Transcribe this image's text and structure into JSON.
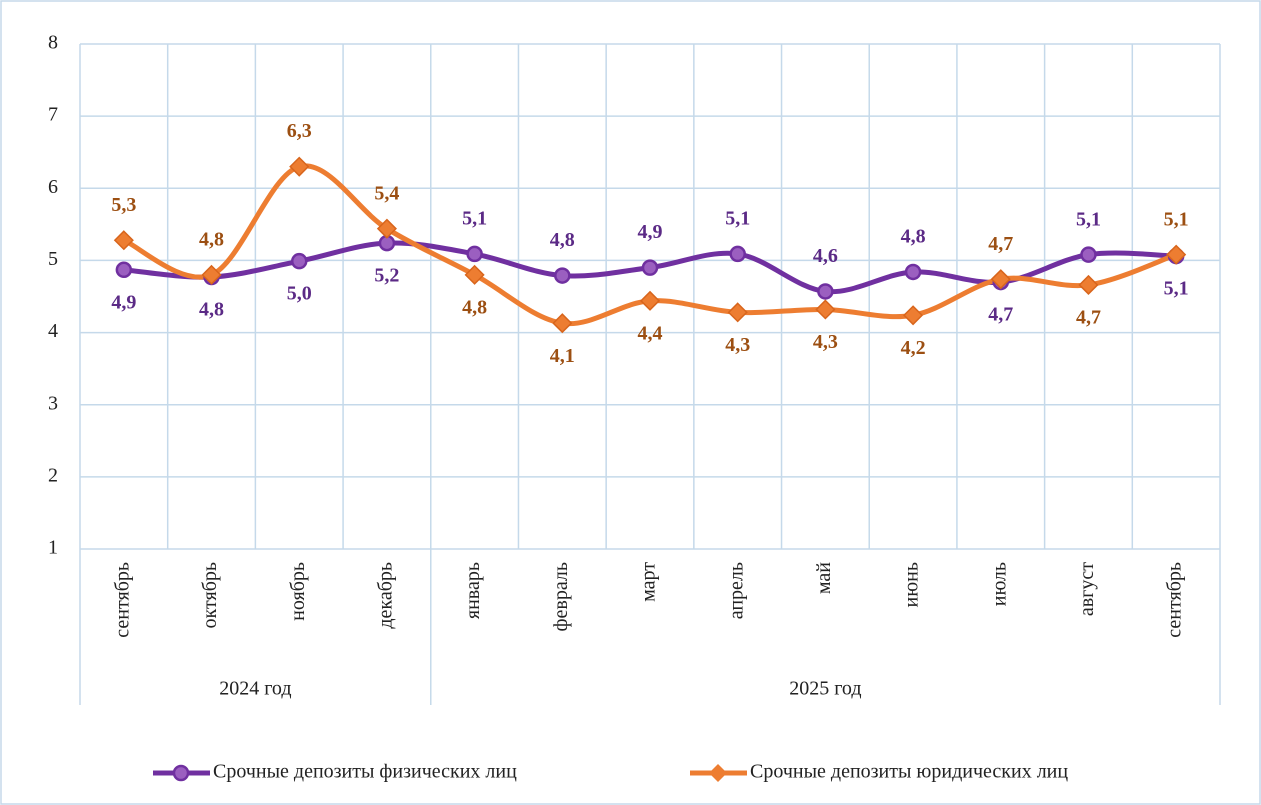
{
  "chart_data": {
    "type": "line",
    "categories": [
      "сентябрь",
      "октябрь",
      "ноябрь",
      "декабрь",
      "январь",
      "февраль",
      "март",
      "апрель",
      "май",
      "июнь",
      "июль",
      "август",
      "сентябрь"
    ],
    "groups": [
      {
        "label": "2024 год",
        "count": 4
      },
      {
        "label": "2025 год",
        "count": 9
      }
    ],
    "series": [
      {
        "name": "Срочные депозиты физических лиц",
        "color": "#7030a0",
        "marker": "circle",
        "values": [
          4.87,
          4.77,
          4.99,
          5.24,
          5.09,
          4.79,
          4.9,
          5.09,
          4.57,
          4.84,
          4.7,
          5.08,
          5.06
        ],
        "value_labels": [
          "4,9",
          "4,8",
          "5,0",
          "5,2",
          "5,1",
          "4,8",
          "4,9",
          "5,1",
          "4,6",
          "4,8",
          "4,7",
          "5,1",
          "5,1"
        ]
      },
      {
        "name": "Срочные депозиты юридических лиц",
        "color": "#ed7d31",
        "marker": "diamond",
        "values": [
          5.28,
          4.8,
          6.3,
          5.44,
          4.8,
          4.13,
          4.44,
          4.28,
          4.32,
          4.24,
          4.74,
          4.66,
          5.08
        ],
        "value_labels": [
          "5,3",
          "4,8",
          "6,3",
          "5,4",
          "4,8",
          "4,1",
          "4,4",
          "4,3",
          "4,3",
          "4,2",
          "4,7",
          "4,7",
          "5,1"
        ]
      }
    ],
    "ylim": [
      1,
      8
    ],
    "yticks": [
      1,
      2,
      3,
      4,
      5,
      6,
      7,
      8
    ],
    "grid": true,
    "legend": "bottom"
  }
}
